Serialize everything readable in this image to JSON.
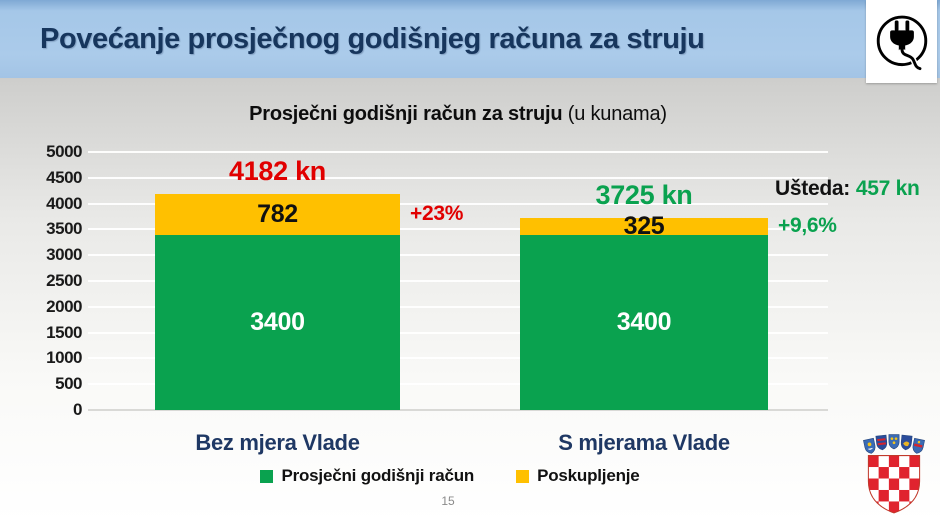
{
  "slide": {
    "title": "Povećanje prosječnog godišnjeg računa za struju",
    "page_number": "15"
  },
  "icons": {
    "top_right": "electric-plug-icon",
    "bottom_right": "croatia-coat-of-arms"
  },
  "colors": {
    "green": "#0aa24f",
    "yellow": "#ffc000",
    "red": "#e10000",
    "navy": "#1f3864",
    "header_blue": "#a9cae9"
  },
  "chart_data": {
    "type": "bar",
    "stacked": true,
    "title": "Prosječni godišnji račun za struju",
    "title_note": " (u kunama)",
    "ylim": [
      0,
      5000
    ],
    "ytick_step": 500,
    "yticks": [
      5000,
      4500,
      4000,
      3500,
      3000,
      2500,
      2000,
      1500,
      1000,
      500,
      0
    ],
    "grid": true,
    "legend_position": "bottom",
    "categories": [
      "Bez mjera Vlade",
      "S mjerama Vlade"
    ],
    "series": [
      {
        "name": "Prosječni godišnji račun",
        "color": "#0aa24f",
        "values": [
          3400,
          3400
        ]
      },
      {
        "name": "Poskupljenje",
        "color": "#ffc000",
        "values": [
          782,
          325
        ]
      }
    ],
    "totals": [
      {
        "label": "4182 kn",
        "color": "#e10000"
      },
      {
        "label": "3725 kn",
        "color": "#0aa24f"
      }
    ],
    "pct_changes": [
      {
        "label": "+23%",
        "color": "#e10000"
      },
      {
        "label": "+9,6%",
        "color": "#0aa24f"
      }
    ]
  },
  "annotations": {
    "savings_label": "Ušteda:",
    "savings_value": "457 kn",
    "savings_value_color": "#0aa24f"
  }
}
